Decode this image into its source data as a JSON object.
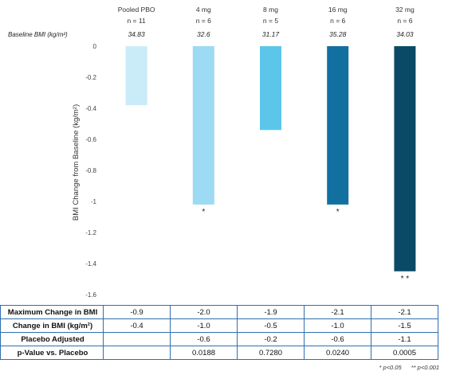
{
  "chart_data": {
    "type": "bar",
    "ylabel": "BMI Change from Baseline (kg/m²)",
    "ylim": [
      -1.6,
      0
    ],
    "yticks": [
      0,
      -0.2,
      -0.4,
      -0.6,
      -0.8,
      -1,
      -1.2,
      -1.4,
      -1.6
    ],
    "grid": false,
    "baseline_label": "Baseline BMI (kg/m²)",
    "groups": [
      {
        "dose": "Pooled PBO",
        "n": "n = 11",
        "baseline": "34.83",
        "value": -0.38,
        "color": "#c9ecf8",
        "sig": ""
      },
      {
        "dose": "4 mg",
        "n": "n = 6",
        "baseline": "32.6",
        "value": -1.02,
        "color": "#9ddaf4",
        "sig": "*"
      },
      {
        "dose": "8 mg",
        "n": "n = 5",
        "baseline": "31.17",
        "value": -0.54,
        "color": "#5cc6ea",
        "sig": ""
      },
      {
        "dose": "16 mg",
        "n": "n = 6",
        "baseline": "35.28",
        "value": -1.02,
        "color": "#1270a0",
        "sig": "*"
      },
      {
        "dose": "32 mg",
        "n": "n = 6",
        "baseline": "34.03",
        "value": -1.45,
        "color": "#0b4a66",
        "sig": "* *"
      }
    ]
  },
  "table": {
    "rows": [
      {
        "label": "Maximum Change in BMI",
        "cells": [
          "-0.9",
          "-2.0",
          "-1.9",
          "-2.1",
          "-2.1"
        ]
      },
      {
        "label": "Change in BMI (kg/m²)",
        "cells": [
          "-0.4",
          "-1.0",
          "-0.5",
          "-1.0",
          "-1.5"
        ]
      },
      {
        "label": "Placebo Adjusted",
        "cells": [
          "",
          "-0.6",
          "-0.2",
          "-0.6",
          "-1.1"
        ]
      },
      {
        "label": "p-Value vs. Placebo",
        "cells": [
          "",
          "0.0188",
          "0.7280",
          "0.0240",
          "0.0005"
        ]
      }
    ]
  },
  "footnote": {
    "sig1": "* p<0.05",
    "sig2": "** p<0.001"
  }
}
